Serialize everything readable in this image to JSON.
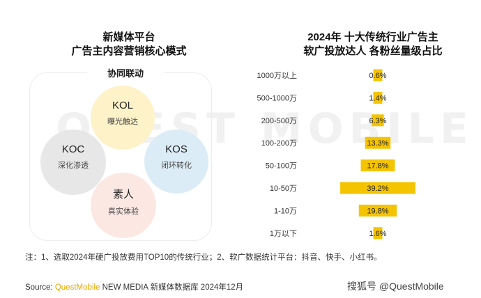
{
  "left_panel": {
    "title_line1": "新媒体平台",
    "title_line2": "广告主内容营销核心模式",
    "center_label": "协同联动",
    "nodes": [
      {
        "name": "KOL",
        "sub": "曝光触达",
        "color": "#fdf2c8"
      },
      {
        "name": "KOC",
        "sub": "深化渗透",
        "color": "#e7e7e7"
      },
      {
        "name": "KOS",
        "sub": "闭环转化",
        "color": "#dcecf6"
      },
      {
        "name": "素人",
        "sub": "真实体验",
        "color": "#fce8e3"
      }
    ]
  },
  "chart_data": {
    "type": "bar",
    "orientation": "horizontal-centered",
    "title_line1": "2024年 十大传统行业广告主",
    "title_line2": "软广投放达人 各粉丝量级占比",
    "categories": [
      "1000万以上",
      "500-1000万",
      "200-500万",
      "100-200万",
      "50-100万",
      "10-50万",
      "1-10万",
      "1万以下"
    ],
    "values": [
      0.6,
      1.4,
      6.3,
      13.3,
      17.8,
      39.2,
      19.8,
      1.6
    ],
    "labels": [
      "0.6%",
      "1.4%",
      "6.3%",
      "13.3%",
      "17.8%",
      "39.2%",
      "19.8%",
      "1.6%"
    ],
    "unit": "%",
    "bar_color": "#f5c400",
    "grid": false
  },
  "footer": {
    "note": "注：1、选取2024年硬广投放费用TOP10的传统行业；2、软广数据统计平台：抖音、快手、小红书。",
    "source_prefix": "Source:",
    "source_brand": "QuestMobile",
    "source_rest": "NEW MEDIA 新媒体数据库 2024年12月",
    "credit": "搜狐号 @QuestMobile"
  },
  "watermark_text": "QUEST MOBILE"
}
